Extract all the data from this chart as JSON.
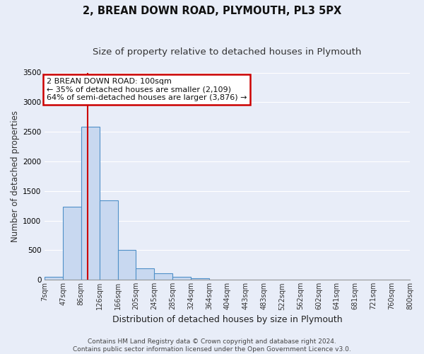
{
  "title": "2, BREAN DOWN ROAD, PLYMOUTH, PL3 5PX",
  "subtitle": "Size of property relative to detached houses in Plymouth",
  "xlabel": "Distribution of detached houses by size in Plymouth",
  "ylabel": "Number of detached properties",
  "bin_labels": [
    "7sqm",
    "47sqm",
    "86sqm",
    "126sqm",
    "166sqm",
    "205sqm",
    "245sqm",
    "285sqm",
    "324sqm",
    "364sqm",
    "404sqm",
    "443sqm",
    "483sqm",
    "522sqm",
    "562sqm",
    "602sqm",
    "641sqm",
    "681sqm",
    "721sqm",
    "760sqm",
    "800sqm"
  ],
  "bar_values": [
    50,
    1230,
    2590,
    1340,
    500,
    200,
    110,
    50,
    30,
    5,
    0,
    0,
    0,
    0,
    0,
    0,
    0,
    0,
    0,
    0
  ],
  "bar_color": "#c8d8f0",
  "bar_edge_color": "#5090c8",
  "vline_x": 100,
  "vline_color": "#cc0000",
  "ylim": [
    0,
    3500
  ],
  "annotation_title": "2 BREAN DOWN ROAD: 100sqm",
  "annotation_line1": "← 35% of detached houses are smaller (2,109)",
  "annotation_line2": "64% of semi-detached houses are larger (3,876) →",
  "annotation_box_facecolor": "#ffffff",
  "annotation_box_edge": "#cc0000",
  "footer_line1": "Contains HM Land Registry data © Crown copyright and database right 2024.",
  "footer_line2": "Contains public sector information licensed under the Open Government Licence v3.0.",
  "background_color": "#e8edf8",
  "grid_color": "#ffffff",
  "title_fontsize": 10.5,
  "subtitle_fontsize": 9.5,
  "ylabel_fontsize": 8.5,
  "xlabel_fontsize": 9,
  "tick_fontsize": 7,
  "annotation_fontsize": 8,
  "footer_fontsize": 6.5
}
